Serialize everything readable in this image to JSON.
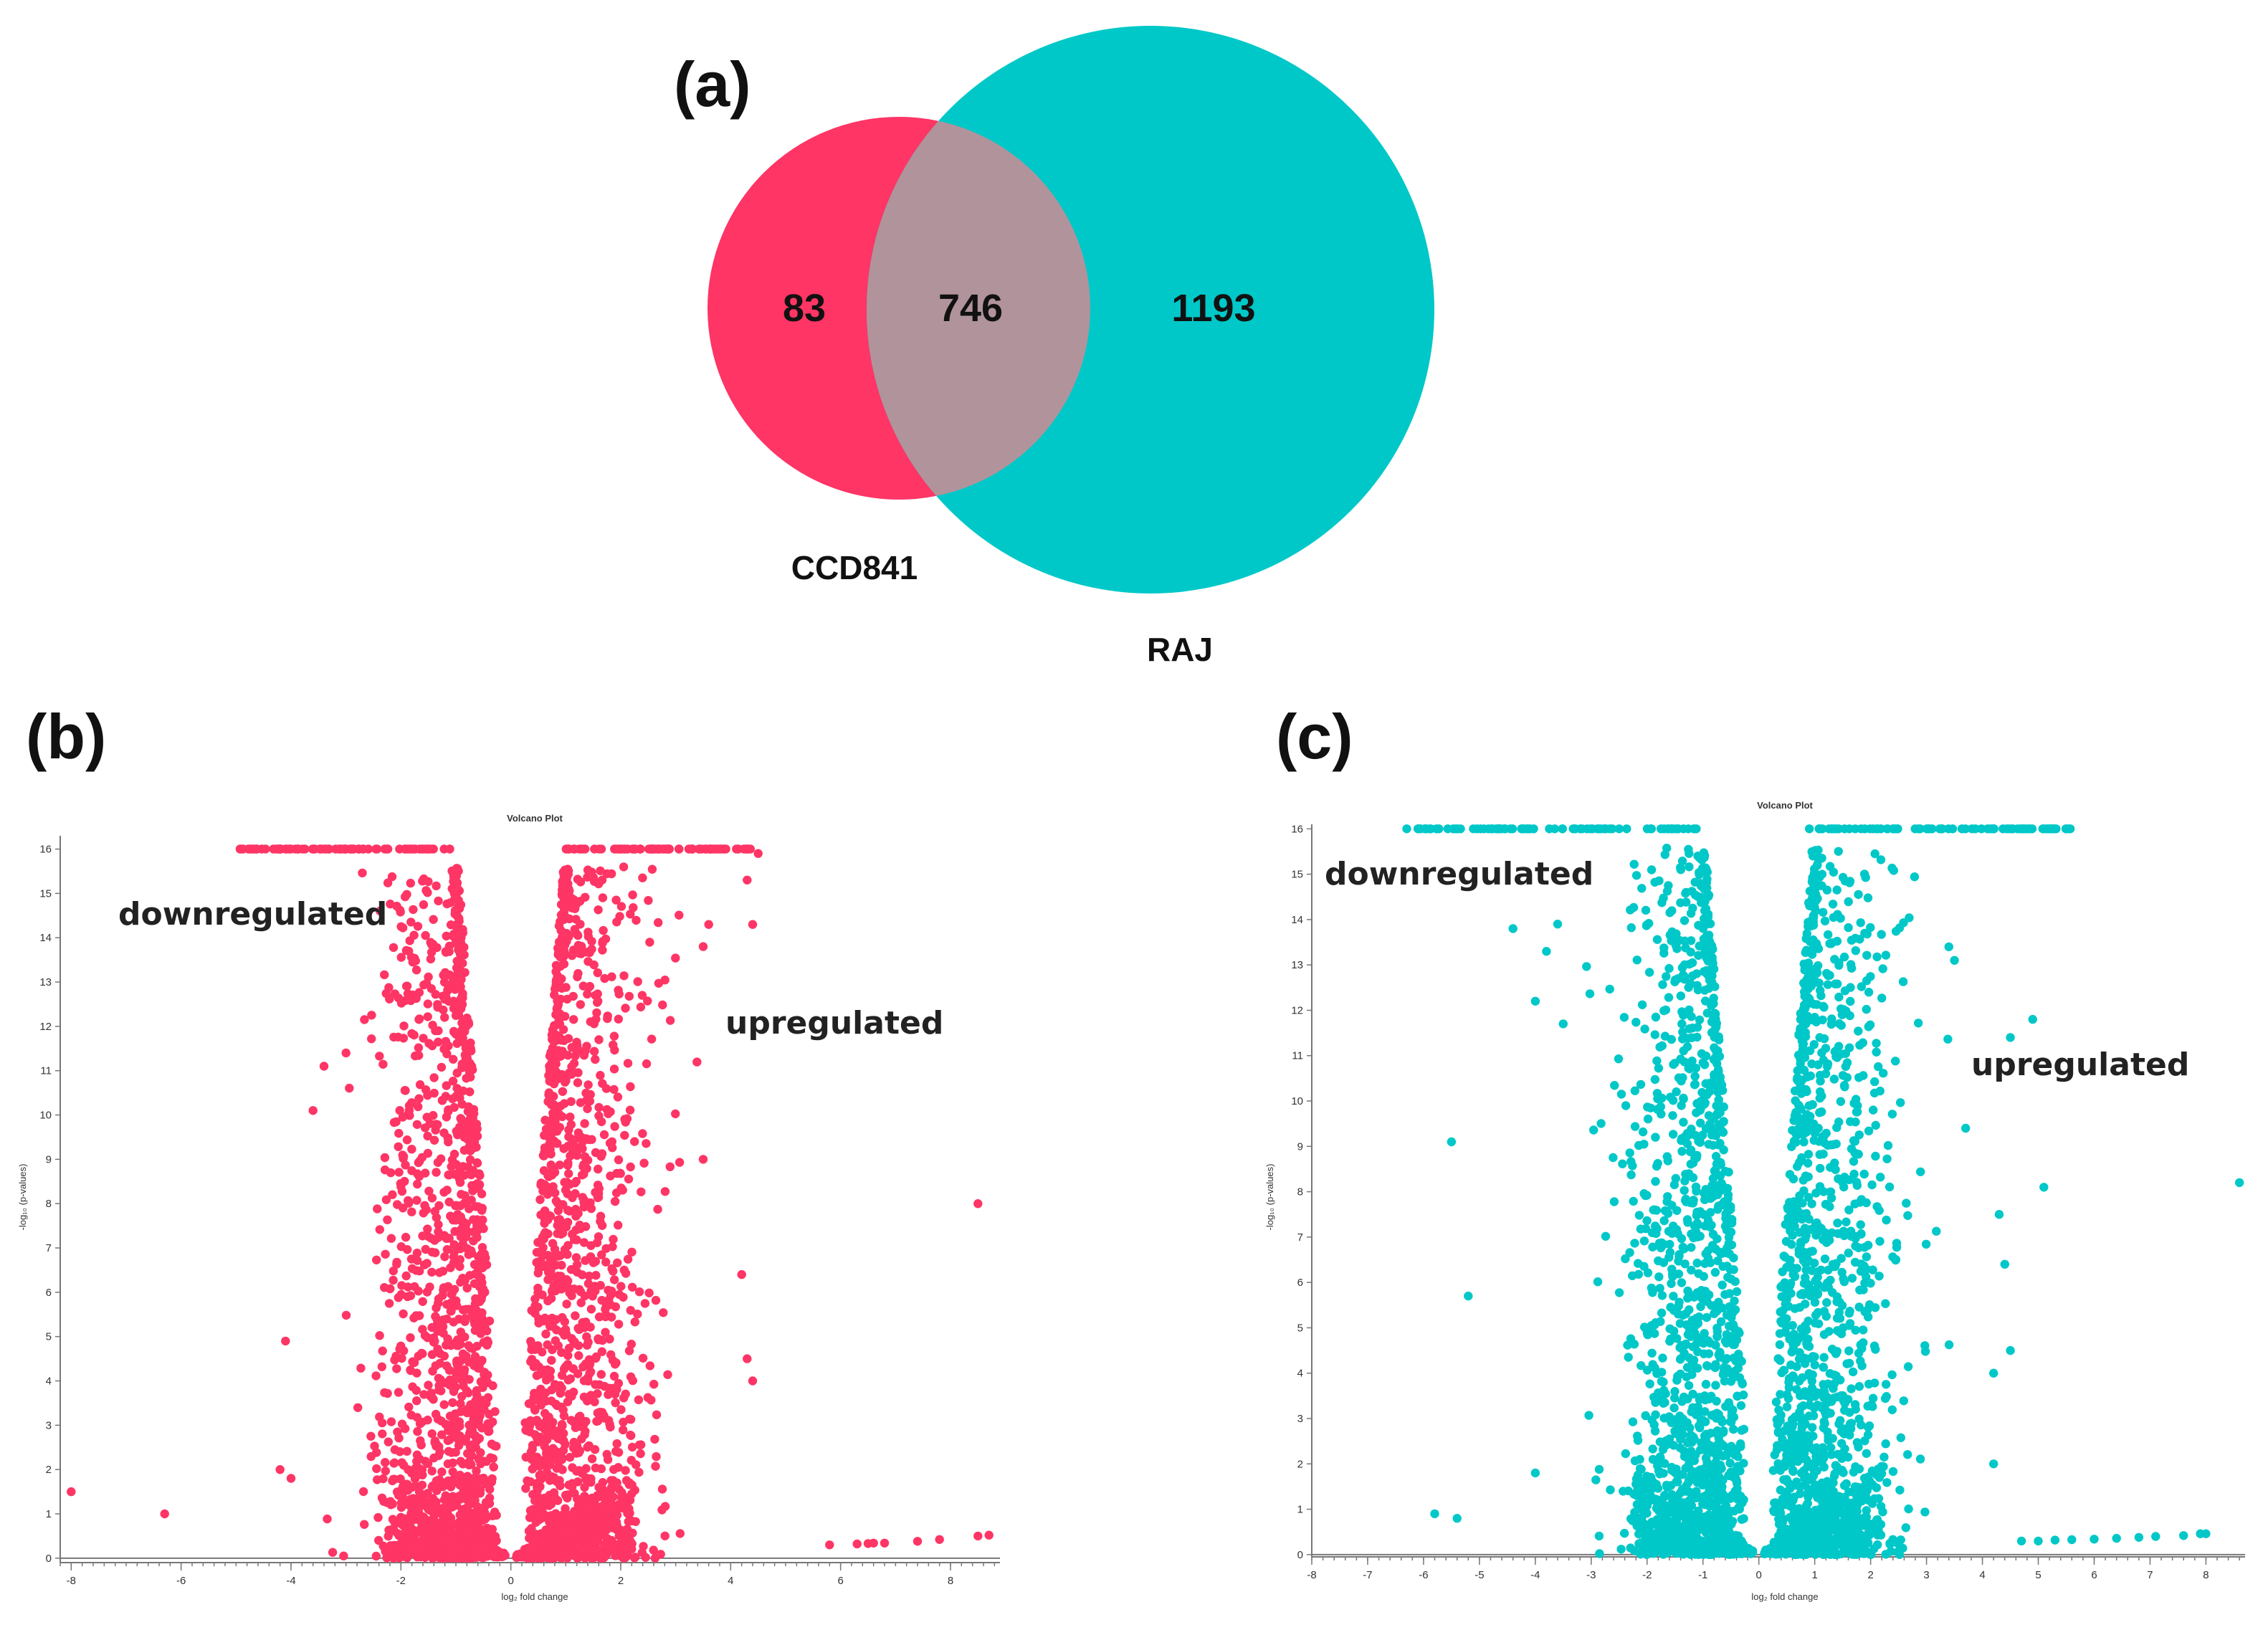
{
  "chart_data": [
    {
      "id": "a",
      "type": "venn",
      "panel_label": "(a)",
      "sets": [
        {
          "name": "CCD841",
          "only_count": "83",
          "color": "#fe3565"
        },
        {
          "name": "RAJ",
          "only_count": "1193",
          "color": "#00c8c8"
        }
      ],
      "intersection_count": "746",
      "intersection_color": "#b1939c"
    },
    {
      "id": "b",
      "type": "scatter",
      "panel_label": "(b)",
      "title": "Volcano Plot",
      "xlabel": "log₂ fold change",
      "ylabel": "-log₁₀ (p-values)",
      "xlim": [
        -8.2,
        8.9
      ],
      "ylim": [
        -0.1,
        16.3
      ],
      "xticks": [
        -8,
        -6,
        -4,
        -2,
        0,
        2,
        4,
        6,
        8
      ],
      "yticks": [
        0,
        1,
        2,
        3,
        4,
        5,
        6,
        7,
        8,
        9,
        10,
        11,
        12,
        13,
        14,
        15,
        16
      ],
      "color": "#fe3565",
      "annotations": {
        "down": "downregulated",
        "up": "upregulated"
      },
      "cap": 16,
      "outliers": [
        [
          -8.0,
          1.5
        ],
        [
          -6.3,
          1.0
        ],
        [
          -4.2,
          2.0
        ],
        [
          -4.0,
          1.8
        ],
        [
          -4.1,
          4.9
        ],
        [
          -3.6,
          10.1
        ],
        [
          -3.4,
          11.1
        ],
        [
          -3.0,
          11.4
        ],
        [
          5.8,
          0.3
        ],
        [
          6.3,
          0.32
        ],
        [
          6.5,
          0.33
        ],
        [
          6.6,
          0.34
        ],
        [
          6.8,
          0.34
        ],
        [
          7.4,
          0.38
        ],
        [
          7.8,
          0.42
        ],
        [
          8.5,
          0.5
        ],
        [
          8.7,
          0.52
        ],
        [
          8.5,
          8.0
        ],
        [
          4.4,
          4.0
        ],
        [
          4.3,
          4.5
        ],
        [
          4.2,
          6.4
        ],
        [
          3.5,
          9.0
        ],
        [
          3.6,
          14.3
        ],
        [
          3.5,
          13.8
        ],
        [
          4.4,
          14.3
        ],
        [
          4.3,
          15.3
        ],
        [
          4.5,
          15.9
        ]
      ],
      "cap_left": [
        -5.0,
        -1.1
      ],
      "cap_right": [
        1.0,
        4.4
      ],
      "seed": 11
    },
    {
      "id": "c",
      "type": "scatter",
      "panel_label": "(c)",
      "title": "Volcano Plot",
      "xlabel": "log₂ fold change",
      "ylabel": "-log₁₀ (p-values)",
      "xlim": [
        -8.0,
        8.7
      ],
      "ylim": [
        -0.05,
        16.1
      ],
      "xticks": [
        -8,
        -7,
        -6,
        -5,
        -4,
        -3,
        -2,
        -1,
        0,
        1,
        2,
        3,
        4,
        5,
        6,
        7,
        8
      ],
      "yticks": [
        0,
        1,
        2,
        3,
        4,
        5,
        6,
        7,
        8,
        9,
        10,
        11,
        12,
        13,
        14,
        15,
        16
      ],
      "color": "#00c8c8",
      "annotations": {
        "down": "downregulated",
        "up": "upregulated"
      },
      "cap": 16,
      "outliers": [
        [
          -5.8,
          0.9
        ],
        [
          -5.4,
          0.8
        ],
        [
          -5.2,
          5.7
        ],
        [
          -5.5,
          9.1
        ],
        [
          -4.4,
          13.8
        ],
        [
          -4.0,
          12.2
        ],
        [
          -4.0,
          1.8
        ],
        [
          -3.8,
          13.3
        ],
        [
          -3.6,
          13.9
        ],
        [
          -3.5,
          11.7
        ],
        [
          -6.3,
          16
        ],
        [
          -6.1,
          16
        ],
        [
          4.7,
          0.3
        ],
        [
          5.0,
          0.3
        ],
        [
          5.3,
          0.32
        ],
        [
          5.6,
          0.33
        ],
        [
          6.0,
          0.34
        ],
        [
          6.4,
          0.36
        ],
        [
          6.8,
          0.38
        ],
        [
          7.1,
          0.4
        ],
        [
          7.6,
          0.42
        ],
        [
          7.9,
          0.46
        ],
        [
          8.0,
          0.46
        ],
        [
          8.6,
          8.2
        ],
        [
          5.1,
          8.1
        ],
        [
          4.9,
          11.8
        ],
        [
          4.5,
          11.4
        ],
        [
          4.3,
          7.5
        ],
        [
          4.2,
          4.0
        ],
        [
          4.5,
          4.5
        ],
        [
          4.4,
          6.4
        ],
        [
          4.2,
          2.0
        ],
        [
          3.7,
          9.4
        ],
        [
          3.4,
          13.4
        ],
        [
          3.5,
          13.1
        ]
      ],
      "cap_left": [
        -6.1,
        -1.1
      ],
      "cap_right": [
        0.9,
        5.6
      ],
      "seed": 29
    }
  ]
}
